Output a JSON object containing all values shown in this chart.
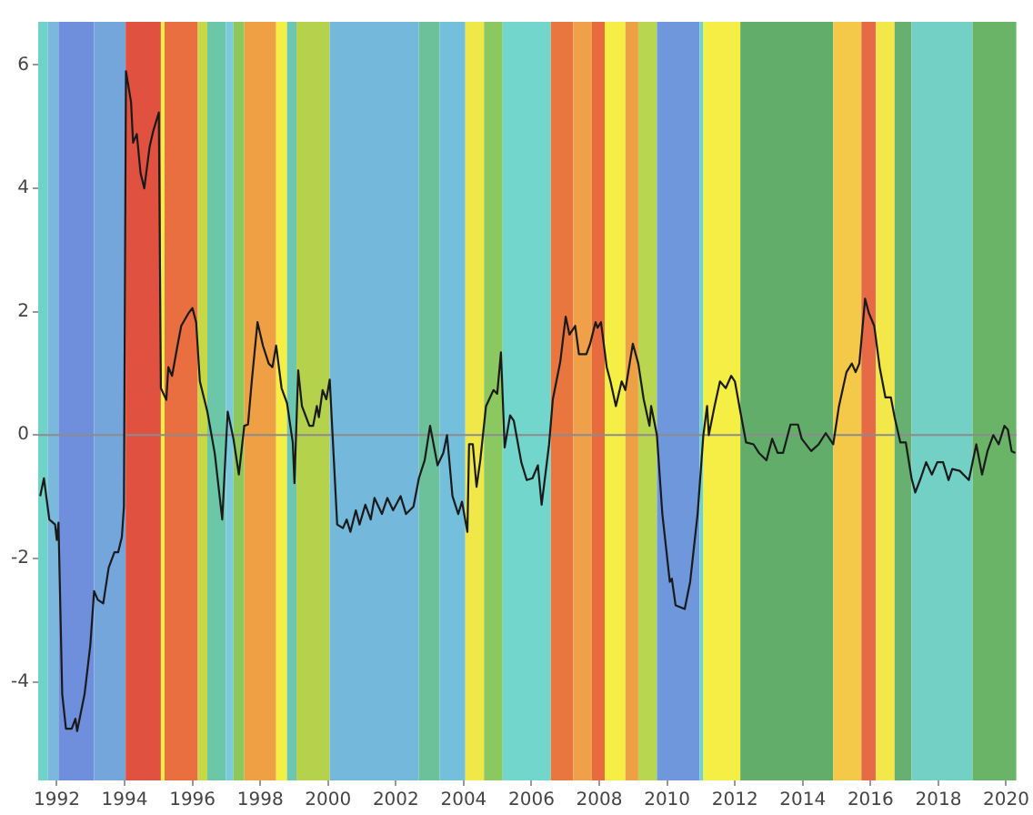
{
  "chart_data": {
    "type": "line",
    "xlim": [
      1991.45,
      2020.3
    ],
    "xticks": [
      1992,
      1994,
      1996,
      1998,
      2000,
      2002,
      2004,
      2006,
      2008,
      2010,
      2012,
      2014,
      2016,
      2018,
      2020
    ],
    "ylim": [
      -5.6,
      6.7
    ],
    "yticks": [
      -4,
      -2,
      0,
      2,
      4,
      6
    ],
    "grid": false,
    "legend": false,
    "marker": "none",
    "line_style": "solid",
    "series": [
      {
        "color": "#1a1a1a",
        "x": [
          1991.51,
          1991.62,
          1991.78,
          1991.95,
          1992.0,
          1992.05,
          1992.16,
          1992.27,
          1992.44,
          1992.55,
          1992.6,
          1992.82,
          1992.99,
          1993.1,
          1993.21,
          1993.37,
          1993.53,
          1993.7,
          1993.81,
          1993.92,
          1993.98,
          1994.04,
          1994.19,
          1994.25,
          1994.36,
          1994.47,
          1994.58,
          1994.74,
          1994.85,
          1995.01,
          1995.07,
          1995.23,
          1995.29,
          1995.4,
          1995.56,
          1995.67,
          1995.89,
          1996.0,
          1996.11,
          1996.22,
          1996.44,
          1996.66,
          1996.88,
          1997.04,
          1997.21,
          1997.37,
          1997.53,
          1997.64,
          1997.75,
          1997.92,
          1998.08,
          1998.25,
          1998.36,
          1998.47,
          1998.63,
          1998.79,
          1998.96,
          1999.01,
          1999.12,
          1999.23,
          1999.45,
          1999.56,
          1999.67,
          1999.73,
          1999.84,
          1999.95,
          2000.05,
          2000.27,
          2000.44,
          2000.55,
          2000.66,
          2000.82,
          2000.93,
          2001.1,
          2001.26,
          2001.37,
          2001.59,
          2001.75,
          2001.92,
          2002.14,
          2002.3,
          2002.52,
          2002.68,
          2002.85,
          2003.01,
          2003.23,
          2003.4,
          2003.51,
          2003.67,
          2003.84,
          2003.95,
          2004.11,
          2004.16,
          2004.27,
          2004.38,
          2004.49,
          2004.66,
          2004.88,
          2004.99,
          2005.1,
          2005.21,
          2005.37,
          2005.48,
          2005.7,
          2005.86,
          2006.03,
          2006.19,
          2006.3,
          2006.52,
          2006.63,
          2006.85,
          2007.01,
          2007.12,
          2007.29,
          2007.4,
          2007.62,
          2007.73,
          2007.89,
          2007.95,
          2008.05,
          2008.22,
          2008.33,
          2008.49,
          2008.66,
          2008.77,
          2008.99,
          2009.15,
          2009.31,
          2009.48,
          2009.53,
          2009.7,
          2009.86,
          2010.08,
          2010.14,
          2010.25,
          2010.52,
          2010.68,
          2010.9,
          2011.07,
          2011.18,
          2011.23,
          2011.4,
          2011.56,
          2011.73,
          2011.89,
          2012.0,
          2012.16,
          2012.33,
          2012.55,
          2012.71,
          2012.93,
          2013.1,
          2013.26,
          2013.42,
          2013.64,
          2013.86,
          2013.97,
          2014.25,
          2014.47,
          2014.68,
          2014.9,
          2015.07,
          2015.29,
          2015.45,
          2015.56,
          2015.67,
          2015.84,
          2015.95,
          2016.11,
          2016.27,
          2016.44,
          2016.6,
          2016.71,
          2016.88,
          2017.04,
          2017.21,
          2017.32,
          2017.48,
          2017.64,
          2017.81,
          2017.97,
          2018.14,
          2018.3,
          2018.41,
          2018.63,
          2018.9,
          2019.12,
          2019.29,
          2019.45,
          2019.62,
          2019.78,
          2019.95,
          2020.05,
          2020.16,
          2020.27
        ],
        "values": [
          -0.99,
          -0.7,
          -1.37,
          -1.45,
          -1.7,
          -1.42,
          -4.2,
          -4.76,
          -4.76,
          -4.6,
          -4.8,
          -4.2,
          -3.4,
          -2.53,
          -2.67,
          -2.73,
          -2.15,
          -1.9,
          -1.9,
          -1.65,
          -1.16,
          5.9,
          5.4,
          4.74,
          4.88,
          4.25,
          4.0,
          4.68,
          4.94,
          5.23,
          0.76,
          0.57,
          1.1,
          0.96,
          1.45,
          1.77,
          1.98,
          2.06,
          1.83,
          0.87,
          0.38,
          -0.3,
          -1.37,
          0.38,
          -0.06,
          -0.64,
          0.15,
          0.17,
          0.87,
          1.83,
          1.45,
          1.16,
          1.1,
          1.45,
          0.76,
          0.52,
          -0.12,
          -0.78,
          1.05,
          0.47,
          0.15,
          0.15,
          0.47,
          0.29,
          0.73,
          0.58,
          0.9,
          -1.45,
          -1.51,
          -1.37,
          -1.57,
          -1.22,
          -1.45,
          -1.13,
          -1.37,
          -1.02,
          -1.28,
          -1.02,
          -1.22,
          -0.99,
          -1.28,
          -1.16,
          -0.7,
          -0.41,
          0.15,
          -0.49,
          -0.29,
          0,
          -0.99,
          -1.28,
          -1.08,
          -1.57,
          -0.15,
          -0.15,
          -0.84,
          -0.41,
          0.47,
          0.73,
          0.67,
          1.34,
          -0.2,
          0.32,
          0.23,
          -0.44,
          -0.73,
          -0.7,
          -0.49,
          -1.13,
          -0.15,
          0.58,
          1.19,
          1.92,
          1.63,
          1.77,
          1.31,
          1.31,
          1.48,
          1.83,
          1.74,
          1.83,
          1.1,
          0.87,
          0.47,
          0.87,
          0.73,
          1.48,
          1.16,
          0.58,
          0.15,
          0.47,
          0,
          -1.28,
          -2.38,
          -2.33,
          -2.76,
          -2.82,
          -2.38,
          -1.28,
          0,
          0.47,
          0,
          0.47,
          0.87,
          0.76,
          0.96,
          0.87,
          0.38,
          -0.12,
          -0.15,
          -0.29,
          -0.41,
          -0.06,
          -0.29,
          -0.29,
          0.17,
          0.17,
          -0.06,
          -0.26,
          -0.15,
          0.03,
          -0.15,
          0.47,
          1.02,
          1.16,
          1.02,
          1.16,
          2.21,
          1.98,
          1.77,
          1.1,
          0.61,
          0.61,
          0.29,
          -0.12,
          -0.12,
          -0.7,
          -0.93,
          -0.7,
          -0.44,
          -0.64,
          -0.44,
          -0.44,
          -0.73,
          -0.55,
          -0.58,
          -0.73,
          -0.15,
          -0.64,
          -0.26,
          0,
          -0.15,
          0.15,
          0.09,
          -0.26,
          -0.29
        ]
      }
    ],
    "ref_lines": [
      {
        "axis": "y",
        "value": 0,
        "color": "#8c8c8c"
      }
    ],
    "bands": [
      {
        "axis": "x",
        "from": 1991.45,
        "to": 1991.73,
        "color": "#6fd3c8"
      },
      {
        "axis": "x",
        "from": 1991.73,
        "to": 1992.05,
        "color": "#7ab8dc"
      },
      {
        "axis": "x",
        "from": 1992.05,
        "to": 1993.1,
        "color": "#6f8fdc"
      },
      {
        "axis": "x",
        "from": 1993.1,
        "to": 1994.03,
        "color": "#74a6dc"
      },
      {
        "axis": "x",
        "from": 1994.03,
        "to": 1995.07,
        "color": "#e0523f"
      },
      {
        "axis": "x",
        "from": 1995.07,
        "to": 1995.18,
        "color": "#f5ee45"
      },
      {
        "axis": "x",
        "from": 1995.18,
        "to": 1996.16,
        "color": "#e96e40"
      },
      {
        "axis": "x",
        "from": 1996.16,
        "to": 1996.44,
        "color": "#c7d845"
      },
      {
        "axis": "x",
        "from": 1996.44,
        "to": 1996.99,
        "color": "#6cc6a8"
      },
      {
        "axis": "x",
        "from": 1996.99,
        "to": 1997.21,
        "color": "#7cc8dc"
      },
      {
        "axis": "x",
        "from": 1997.21,
        "to": 1997.53,
        "color": "#8cc85a"
      },
      {
        "axis": "x",
        "from": 1997.53,
        "to": 1998.47,
        "color": "#efa045"
      },
      {
        "axis": "x",
        "from": 1998.47,
        "to": 1998.79,
        "color": "#f5ee45"
      },
      {
        "axis": "x",
        "from": 1998.79,
        "to": 1999.07,
        "color": "#6cc6b0"
      },
      {
        "axis": "x",
        "from": 1999.07,
        "to": 2000.05,
        "color": "#b4d24c"
      },
      {
        "axis": "x",
        "from": 2000.05,
        "to": 2002.68,
        "color": "#74b8dc"
      },
      {
        "axis": "x",
        "from": 2002.68,
        "to": 2003.29,
        "color": "#6cc09a"
      },
      {
        "axis": "x",
        "from": 2003.29,
        "to": 2004.05,
        "color": "#74c0dc"
      },
      {
        "axis": "x",
        "from": 2004.05,
        "to": 2004.6,
        "color": "#f0e848"
      },
      {
        "axis": "x",
        "from": 2004.6,
        "to": 2005.15,
        "color": "#8cc860"
      },
      {
        "axis": "x",
        "from": 2005.15,
        "to": 2006.57,
        "color": "#72d6cc"
      },
      {
        "axis": "x",
        "from": 2006.57,
        "to": 2007.23,
        "color": "#e9763f"
      },
      {
        "axis": "x",
        "from": 2007.23,
        "to": 2007.78,
        "color": "#f0a048"
      },
      {
        "axis": "x",
        "from": 2007.78,
        "to": 2008.16,
        "color": "#e86b3e"
      },
      {
        "axis": "x",
        "from": 2008.16,
        "to": 2008.77,
        "color": "#f5ee45"
      },
      {
        "axis": "x",
        "from": 2008.77,
        "to": 2009.15,
        "color": "#eea045"
      },
      {
        "axis": "x",
        "from": 2009.15,
        "to": 2009.7,
        "color": "#b8d650"
      },
      {
        "axis": "x",
        "from": 2009.7,
        "to": 2010.96,
        "color": "#6f98dc"
      },
      {
        "axis": "x",
        "from": 2010.96,
        "to": 2011.07,
        "color": "#6fd3c8"
      },
      {
        "axis": "x",
        "from": 2011.07,
        "to": 2012.16,
        "color": "#f5ee45"
      },
      {
        "axis": "x",
        "from": 2012.16,
        "to": 2014.9,
        "color": "#62ad6a"
      },
      {
        "axis": "x",
        "from": 2014.9,
        "to": 2015.73,
        "color": "#f4c848"
      },
      {
        "axis": "x",
        "from": 2015.73,
        "to": 2016.16,
        "color": "#e56a45"
      },
      {
        "axis": "x",
        "from": 2016.16,
        "to": 2016.71,
        "color": "#f2e84a"
      },
      {
        "axis": "x",
        "from": 2016.71,
        "to": 2017.21,
        "color": "#68b070"
      },
      {
        "axis": "x",
        "from": 2017.21,
        "to": 2019.01,
        "color": "#72d0c4"
      },
      {
        "axis": "x",
        "from": 2019.01,
        "to": 2020.3,
        "color": "#6ab468"
      }
    ]
  }
}
